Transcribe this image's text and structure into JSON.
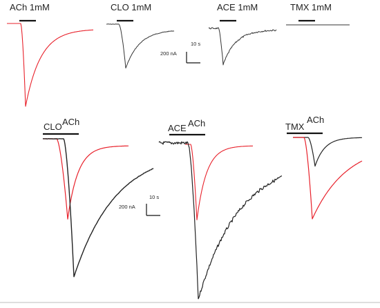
{
  "chart_data": [
    {
      "type": "line",
      "panel": "top",
      "traces": [
        {
          "label": "ACh 1mM",
          "color": "#e8202a",
          "shape": "fast",
          "relative_peak": 1.0
        },
        {
          "label": "CLO 1mM",
          "color": "#333333",
          "shape": "medium",
          "relative_peak": 0.5
        },
        {
          "label": "ACE 1mM",
          "color": "#333333",
          "shape": "medium-noisy",
          "relative_peak": 0.44
        },
        {
          "label": "TMX 1mM",
          "color": "#333333",
          "shape": "flat",
          "relative_peak": 0.0
        }
      ],
      "scalebar": {
        "time": "10 s",
        "current": "200 nA"
      }
    },
    {
      "type": "line",
      "panel": "bottom",
      "groups": [
        {
          "first": "CLO",
          "second": "ACh",
          "ach_relative_peak": 0.57,
          "other_relative_peak": 1.0
        },
        {
          "first": "ACE",
          "second": "ACh",
          "ach_relative_peak": 0.48,
          "other_relative_peak": 1.0
        },
        {
          "first": "TMX",
          "second": "ACh",
          "ach_relative_peak": 1.0,
          "other_relative_peak": 0.3
        }
      ],
      "colors": {
        "ach": "#e8202a",
        "other": "#222222"
      },
      "scalebar": {
        "time": "10 s",
        "current": "200 nA"
      }
    }
  ],
  "labels": {
    "top": [
      "ACh 1mM",
      "CLO 1mM",
      "ACE 1mM",
      "TMX 1mM"
    ],
    "bottom_groups": [
      [
        "CLO",
        "ACh"
      ],
      [
        "ACE",
        "ACh"
      ],
      [
        "TMX",
        "ACh"
      ]
    ],
    "scale_time": "10 s",
    "scale_current": "200 nA"
  }
}
